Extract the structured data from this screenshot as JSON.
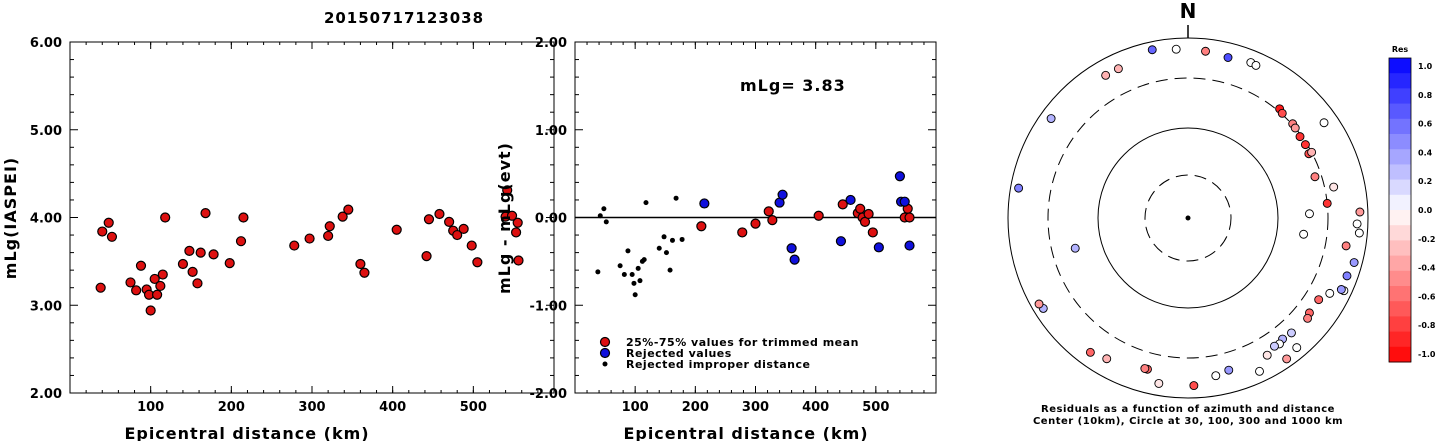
{
  "title": "20150717123038",
  "chart_data": [
    {
      "type": "scatter",
      "id": "mlg-vs-distance",
      "xlabel": "Epicentral distance (km)",
      "ylabel": "mLg(IASPEI)",
      "xlim": [
        0,
        600
      ],
      "ylim": [
        2.0,
        6.0
      ],
      "xticks": [
        "100",
        "200",
        "300",
        "400",
        "500"
      ],
      "yticks": [
        "2.00",
        "3.00",
        "4.00",
        "5.00",
        "6.00"
      ],
      "points": [
        [
          38,
          3.2
        ],
        [
          40,
          3.84
        ],
        [
          48,
          3.94
        ],
        [
          52,
          3.78
        ],
        [
          75,
          3.26
        ],
        [
          82,
          3.17
        ],
        [
          88,
          3.45
        ],
        [
          95,
          3.18
        ],
        [
          98,
          3.12
        ],
        [
          100,
          2.94
        ],
        [
          105,
          3.3
        ],
        [
          108,
          3.12
        ],
        [
          112,
          3.22
        ],
        [
          115,
          3.35
        ],
        [
          118,
          4.0
        ],
        [
          140,
          3.47
        ],
        [
          148,
          3.62
        ],
        [
          152,
          3.38
        ],
        [
          158,
          3.25
        ],
        [
          162,
          3.6
        ],
        [
          168,
          4.05
        ],
        [
          178,
          3.58
        ],
        [
          198,
          3.48
        ],
        [
          212,
          3.73
        ],
        [
          215,
          4.0
        ],
        [
          278,
          3.68
        ],
        [
          297,
          3.76
        ],
        [
          320,
          3.79
        ],
        [
          322,
          3.9
        ],
        [
          338,
          4.01
        ],
        [
          345,
          4.09
        ],
        [
          360,
          3.47
        ],
        [
          365,
          3.37
        ],
        [
          405,
          3.86
        ],
        [
          442,
          3.56
        ],
        [
          445,
          3.98
        ],
        [
          458,
          4.04
        ],
        [
          470,
          3.95
        ],
        [
          475,
          3.85
        ],
        [
          480,
          3.8
        ],
        [
          488,
          3.87
        ],
        [
          498,
          3.68
        ],
        [
          505,
          3.49
        ],
        [
          540,
          4.01
        ],
        [
          542,
          4.31
        ],
        [
          548,
          4.02
        ],
        [
          553,
          3.83
        ],
        [
          555,
          3.94
        ],
        [
          556,
          3.51
        ]
      ]
    },
    {
      "type": "scatter",
      "id": "residual-vs-distance",
      "xlabel": "Epicentral distance (km)",
      "ylabel": "mLg - mLg(evt)",
      "annotation": "mLg= 3.83",
      "xlim": [
        0,
        600
      ],
      "ylim": [
        -2.0,
        2.0
      ],
      "xticks": [
        "100",
        "200",
        "300",
        "400",
        "500"
      ],
      "yticks": [
        "-2.00",
        "-1.00",
        "0.00",
        "1.00",
        "2.00"
      ],
      "legend": [
        {
          "label": "25%-75% values for trimmed mean",
          "color": "#e00000"
        },
        {
          "label": "Rejected values",
          "color": "#0000e0"
        },
        {
          "label": "Rejected improper distance",
          "color": "#000000"
        }
      ],
      "series": [
        {
          "label": "25%-75% values for trimmed mean",
          "points": [
            [
              210,
              -0.1
            ],
            [
              278,
              -0.17
            ],
            [
              300,
              -0.07
            ],
            [
              322,
              0.07
            ],
            [
              328,
              -0.03
            ],
            [
              405,
              0.02
            ],
            [
              445,
              0.15
            ],
            [
              470,
              0.05
            ],
            [
              474,
              0.1
            ],
            [
              478,
              0.0
            ],
            [
              482,
              -0.05
            ],
            [
              488,
              0.04
            ],
            [
              495,
              -0.17
            ],
            [
              548,
              0.0
            ],
            [
              553,
              0.1
            ],
            [
              556,
              0.0
            ]
          ]
        },
        {
          "label": "Rejected values",
          "points": [
            [
              215,
              0.16
            ],
            [
              340,
              0.17
            ],
            [
              345,
              0.26
            ],
            [
              360,
              -0.35
            ],
            [
              365,
              -0.48
            ],
            [
              442,
              -0.27
            ],
            [
              458,
              0.2
            ],
            [
              505,
              -0.34
            ],
            [
              540,
              0.47
            ],
            [
              542,
              0.18
            ],
            [
              548,
              0.18
            ],
            [
              556,
              -0.32
            ]
          ]
        },
        {
          "label": "Rejected improper distance",
          "points": [
            [
              38,
              -0.62
            ],
            [
              42,
              0.02
            ],
            [
              48,
              0.1
            ],
            [
              52,
              -0.05
            ],
            [
              75,
              -0.55
            ],
            [
              82,
              -0.65
            ],
            [
              88,
              -0.38
            ],
            [
              95,
              -0.65
            ],
            [
              98,
              -0.75
            ],
            [
              100,
              -0.88
            ],
            [
              105,
              -0.58
            ],
            [
              108,
              -0.72
            ],
            [
              112,
              -0.5
            ],
            [
              115,
              -0.48
            ],
            [
              118,
              0.17
            ],
            [
              140,
              -0.35
            ],
            [
              148,
              -0.22
            ],
            [
              152,
              -0.4
            ],
            [
              158,
              -0.6
            ],
            [
              162,
              -0.26
            ],
            [
              168,
              0.22
            ],
            [
              178,
              -0.25
            ]
          ]
        }
      ]
    },
    {
      "type": "scatter",
      "id": "azimuth-distance-residuals",
      "north_label": "N",
      "caption_line1": "Residuals as a function of azimuth and distance",
      "caption_line2": "Center (10km), Circle at 30, 100, 300 and 1000 km",
      "colorbar_title": "Res",
      "colorbar_ticks": [
        "1.0",
        "0.8",
        "0.6",
        "0.4",
        "0.2",
        "0.0",
        "-0.2",
        "-0.4",
        "-0.6",
        "-0.8",
        "-1.0"
      ],
      "points_az_dist_res": [
        [
          348,
          1000,
          0.6
        ],
        [
          356,
          900,
          0.0
        ],
        [
          6,
          850,
          -0.5
        ],
        [
          22,
          850,
          0.0
        ],
        [
          24,
          830,
          0.0
        ],
        [
          14,
          780,
          0.7
        ],
        [
          55,
          800,
          0.0
        ],
        [
          330,
          760,
          -0.3
        ],
        [
          335,
          760,
          -0.3
        ],
        [
          306,
          900,
          0.3
        ],
        [
          280,
          1000,
          0.5
        ],
        [
          40,
          330,
          -0.9
        ],
        [
          42,
          310,
          -0.7
        ],
        [
          48,
          310,
          -0.5
        ],
        [
          50,
          300,
          -0.4
        ],
        [
          54,
          290,
          -0.8
        ],
        [
          58,
          290,
          -0.8
        ],
        [
          62,
          280,
          -0.7
        ],
        [
          62,
          300,
          -0.3
        ],
        [
          72,
          260,
          -0.5
        ],
        [
          84,
          300,
          -0.8
        ],
        [
          88,
          200,
          0.0
        ],
        [
          98,
          180,
          0.0
        ],
        [
          255,
          180,
          0.3
        ],
        [
          78,
          420,
          -0.1
        ],
        [
          88,
          1000,
          -0.4
        ],
        [
          92,
          900,
          0.0
        ],
        [
          95,
          1000,
          0.0
        ],
        [
          105,
          1000,
          0.4
        ],
        [
          110,
          900,
          0.5
        ],
        [
          115,
          1000,
          0.0
        ],
        [
          100,
          650,
          -0.5
        ],
        [
          122,
          510,
          -0.6
        ],
        [
          128,
          510,
          -0.6
        ],
        [
          130,
          550,
          -0.5
        ],
        [
          138,
          520,
          0.2
        ],
        [
          142,
          500,
          0.3
        ],
        [
          144,
          540,
          0.0
        ],
        [
          146,
          520,
          0.2
        ],
        [
          150,
          600,
          -0.1
        ],
        [
          165,
          580,
          0.4
        ],
        [
          170,
          640,
          0.0
        ],
        [
          118,
          650,
          0.0
        ],
        [
          140,
          900,
          0.0
        ],
        [
          145,
          1000,
          -0.4
        ],
        [
          155,
          900,
          0.0
        ],
        [
          195,
          560,
          -0.6
        ],
        [
          196,
          560,
          -0.5
        ],
        [
          210,
          700,
          -0.3
        ],
        [
          216,
          800,
          -0.6
        ],
        [
          178,
          850,
          -0.7
        ],
        [
          190,
          860,
          -0.1
        ],
        [
          238,
          950,
          0.3
        ],
        [
          240,
          1000,
          -0.4
        ],
        [
          115,
          900,
          0.4
        ]
      ]
    }
  ]
}
